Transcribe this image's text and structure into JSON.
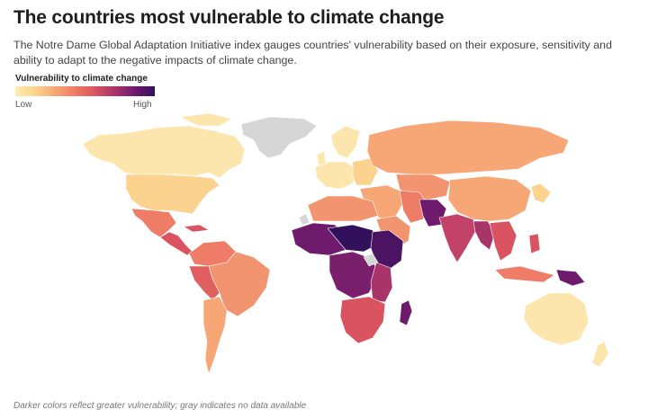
{
  "title": "The countries most vulnerable to climate change",
  "subtitle": "The Notre Dame Global Adaptation Initiative index gauges countries' vulnerability based on their exposure, sensitivity and ability to adapt to the negative impacts of climate change.",
  "legend": {
    "title": "Vulnerability to climate change",
    "low_label": "Low",
    "high_label": "High",
    "colors": [
      "#fdedb0",
      "#fbd38f",
      "#f6a775",
      "#ef7c66",
      "#d95460",
      "#a8346a",
      "#6e1b6e",
      "#33105c"
    ]
  },
  "note": "Darker colors reflect greater vulnerability; gray indicates no data available",
  "colors": {
    "no_data": "#d6d6d6",
    "low": "#fdedb0",
    "high": "#33105c"
  }
}
